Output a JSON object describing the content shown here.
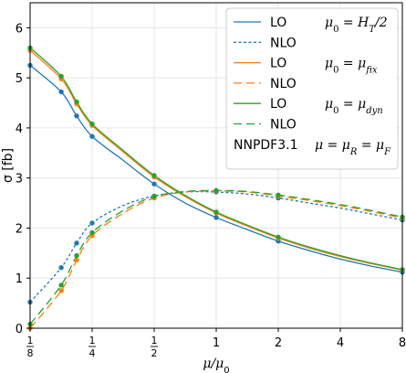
{
  "chart_data": {
    "type": "line",
    "xlabel": "μ/μ₀",
    "ylabel": "σ [fb]",
    "xscale": "log2",
    "xlim": [
      0.125,
      8
    ],
    "ylim": [
      0,
      6.5
    ],
    "grid": true,
    "x_ticks": [
      {
        "value": 0.125,
        "num": "1",
        "den": "8"
      },
      {
        "value": 0.25,
        "num": "1",
        "den": "4"
      },
      {
        "value": 0.5,
        "num": "1",
        "den": "2"
      },
      {
        "value": 1,
        "label": "1"
      },
      {
        "value": 2,
        "label": "2"
      },
      {
        "value": 4,
        "label": "4"
      },
      {
        "value": 8,
        "label": "8"
      }
    ],
    "y_ticks": [
      0,
      1,
      2,
      3,
      4,
      5,
      6
    ],
    "marker_x": [
      0.125,
      0.177,
      0.2102,
      0.25,
      0.5,
      1,
      2,
      8
    ],
    "series": [
      {
        "name": "LO",
        "scale_label": "μ₀ = H_T/2",
        "color": "#1f77b4",
        "dash": "solid",
        "x": [
          0.125,
          0.177,
          0.2102,
          0.25,
          0.354,
          0.5,
          0.707,
          1,
          1.414,
          2,
          2.83,
          4,
          5.66,
          8
        ],
        "y": [
          5.25,
          4.72,
          4.24,
          3.83,
          3.35,
          2.88,
          2.5,
          2.21,
          1.97,
          1.74,
          1.55,
          1.38,
          1.24,
          1.12
        ]
      },
      {
        "name": "NLO",
        "scale_label": "",
        "color": "#1f77b4",
        "dash": "dotted",
        "x": [
          0.125,
          0.177,
          0.2102,
          0.25,
          0.354,
          0.5,
          0.707,
          1,
          1.414,
          2,
          2.83,
          4,
          5.66,
          8
        ],
        "y": [
          0.52,
          1.21,
          1.7,
          2.1,
          2.45,
          2.64,
          2.72,
          2.72,
          2.68,
          2.6,
          2.5,
          2.4,
          2.28,
          2.16
        ]
      },
      {
        "name": "LO",
        "scale_label": "μ₀ = μ_fix",
        "color": "#ff7f0e",
        "dash": "solid",
        "x": [
          0.125,
          0.177,
          0.2102,
          0.25,
          0.354,
          0.5,
          0.707,
          1,
          1.414,
          2,
          2.83,
          4,
          5.66,
          8
        ],
        "y": [
          5.55,
          4.98,
          4.48,
          4.05,
          3.52,
          3.02,
          2.63,
          2.3,
          2.04,
          1.8,
          1.6,
          1.43,
          1.29,
          1.16
        ]
      },
      {
        "name": "NLO",
        "scale_label": "",
        "color": "#ff7f0e",
        "dash": "longdash",
        "x": [
          0.125,
          0.177,
          0.2102,
          0.25,
          0.354,
          0.5,
          0.707,
          1,
          1.414,
          2,
          2.83,
          4,
          5.66,
          8
        ],
        "y": [
          0.0,
          0.75,
          1.36,
          1.85,
          2.3,
          2.6,
          2.72,
          2.74,
          2.72,
          2.64,
          2.55,
          2.45,
          2.33,
          2.2
        ]
      },
      {
        "name": "LO",
        "scale_label": "μ₀ = μ_dyn",
        "color": "#2ca02c",
        "dash": "solid",
        "x": [
          0.125,
          0.177,
          0.2102,
          0.25,
          0.354,
          0.5,
          0.707,
          1,
          1.414,
          2,
          2.83,
          4,
          5.66,
          8
        ],
        "y": [
          5.6,
          5.03,
          4.52,
          4.08,
          3.55,
          3.05,
          2.65,
          2.32,
          2.06,
          1.82,
          1.62,
          1.45,
          1.3,
          1.17
        ]
      },
      {
        "name": "NLO",
        "scale_label": "",
        "color": "#2ca02c",
        "dash": "longdash",
        "x": [
          0.125,
          0.177,
          0.2102,
          0.25,
          0.354,
          0.5,
          0.707,
          1,
          1.414,
          2,
          2.83,
          4,
          5.66,
          8
        ],
        "y": [
          0.08,
          0.86,
          1.45,
          1.91,
          2.35,
          2.63,
          2.73,
          2.75,
          2.73,
          2.66,
          2.57,
          2.47,
          2.35,
          2.22
        ]
      }
    ],
    "legend": {
      "position": "top-right",
      "entries": [
        {
          "label": "LO",
          "annotation": "μ₀ = H_T/2",
          "color": "#1f77b4",
          "dash": "solid"
        },
        {
          "label": "NLO",
          "annotation": "",
          "color": "#1f77b4",
          "dash": "dotted"
        },
        {
          "label": "LO",
          "annotation": "μ₀ = μ_fix",
          "color": "#ff7f0e",
          "dash": "solid"
        },
        {
          "label": "NLO",
          "annotation": "",
          "color": "#ff7f0e",
          "dash": "longdash"
        },
        {
          "label": "LO",
          "annotation": "μ₀ = μ_dyn",
          "color": "#2ca02c",
          "dash": "solid"
        },
        {
          "label": "NLO",
          "annotation": "",
          "color": "#2ca02c",
          "dash": "longdash"
        }
      ],
      "footer_pdf": "NNPDF3.1",
      "footer_scale": "μ = μ_R = μ_F"
    }
  }
}
